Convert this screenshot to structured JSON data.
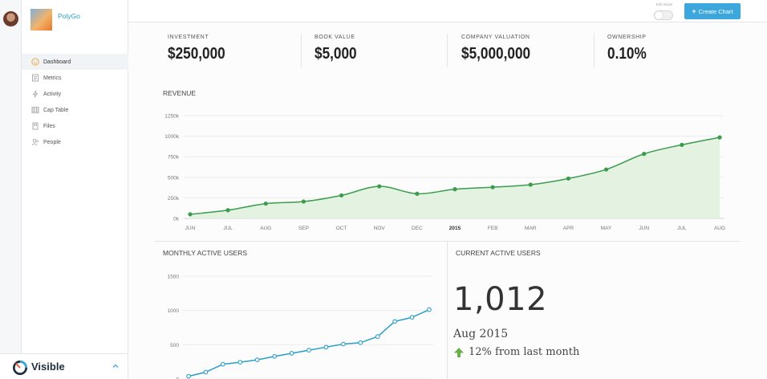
{
  "company": {
    "name": "PolyGo"
  },
  "nav": [
    {
      "label": "Dashboard",
      "icon": "smiley-icon",
      "active": true
    },
    {
      "label": "Metrics",
      "icon": "metrics-icon",
      "active": false
    },
    {
      "label": "Activity",
      "icon": "activity-icon",
      "active": false
    },
    {
      "label": "Cap Table",
      "icon": "table-icon",
      "active": false
    },
    {
      "label": "Files",
      "icon": "files-icon",
      "active": false
    },
    {
      "label": "People",
      "icon": "people-icon",
      "active": false
    }
  ],
  "brand": {
    "name": "Visible",
    "color": "#1f2d3d",
    "accent": "#3ba7dc"
  },
  "topbar": {
    "edit_mode_label": "Edit Mode",
    "create_label": "Create Chart"
  },
  "stats": [
    {
      "label": "Investment",
      "value": "$250,000"
    },
    {
      "label": "Book Value",
      "value": "$5,000"
    },
    {
      "label": "Company Valuation",
      "value": "$5,000,000"
    },
    {
      "label": "Ownership",
      "value": "0.10%"
    }
  ],
  "panels": {
    "revenue": "REVENUE",
    "mau": "MONTHLY ACTIVE USERS",
    "cau": "CURRENT ACTIVE USERS"
  },
  "current_active_users": {
    "value": "1,012",
    "period": "Aug 2015",
    "change": "12% from last month",
    "change_color": "#6ab04c"
  },
  "chart_data": [
    {
      "type": "area",
      "title": "REVENUE",
      "categories": [
        "JUN",
        "JUL",
        "AUG",
        "SEP",
        "OCT",
        "NOV",
        "DEC",
        "2015",
        "FEB",
        "MAR",
        "APR",
        "MAY",
        "JUN",
        "JUL",
        "AUG"
      ],
      "values": [
        50000,
        100000,
        180000,
        205000,
        280000,
        390000,
        300000,
        355000,
        380000,
        410000,
        485000,
        595000,
        785000,
        895000,
        985000
      ],
      "ylim": [
        0,
        1250000
      ],
      "yticks": [
        0,
        250000,
        500000,
        750000,
        1000000,
        1250000
      ],
      "ytick_labels": [
        "0k",
        "250k",
        "500k",
        "750k",
        "1000k",
        "1250k"
      ],
      "color": "#3a9c4c",
      "fill": "#e4f2e2",
      "grid": true
    },
    {
      "type": "line",
      "title": "MONTHLY ACTIVE USERS",
      "values": [
        40,
        100,
        215,
        245,
        280,
        330,
        375,
        420,
        465,
        510,
        530,
        620,
        840,
        900,
        1012
      ],
      "ylim": [
        0,
        1500
      ],
      "yticks": [
        0,
        500,
        1000,
        1500
      ],
      "ytick_labels": [
        "0",
        "500",
        "1000",
        "1500"
      ],
      "color": "#2a9fc9",
      "grid": true
    }
  ]
}
